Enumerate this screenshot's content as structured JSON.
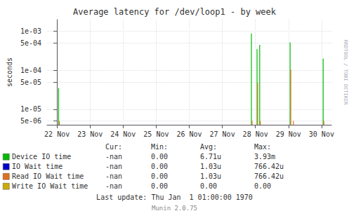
{
  "chart_data": {
    "type": "vlines",
    "title": "Average latency for /dev/loop1 - by week",
    "ylabel": "seconds",
    "log": "y",
    "grid": true,
    "legend": "bottom",
    "xlim": [
      -0.3,
      8.3
    ],
    "xticks": [
      {
        "value": 0,
        "label": "22 Nov"
      },
      {
        "value": 1,
        "label": "23 Nov"
      },
      {
        "value": 2,
        "label": "24 Nov"
      },
      {
        "value": 3,
        "label": "25 Nov"
      },
      {
        "value": 4,
        "label": "26 Nov"
      },
      {
        "value": 5,
        "label": "27 Nov"
      },
      {
        "value": 6,
        "label": "28 Nov"
      },
      {
        "value": 7,
        "label": "29 Nov"
      },
      {
        "value": 8,
        "label": "30 Nov"
      }
    ],
    "ylim": [
      4e-06,
      0.002
    ],
    "yticks": [
      {
        "value": 5e-06,
        "label": "5e-06"
      },
      {
        "value": 1e-05,
        "label": "1e-05"
      },
      {
        "value": 5e-05,
        "label": "5e-05"
      },
      {
        "value": 0.0001,
        "label": "1e-04"
      },
      {
        "value": 0.0005,
        "label": "5e-04"
      },
      {
        "value": 0.001,
        "label": "1e-03"
      }
    ],
    "stats_header": [
      "Cur:",
      "Min:",
      "Avg:",
      "Max:"
    ],
    "series": [
      {
        "name": "Device IO time",
        "color": "#00bb00",
        "x": [
          0.05,
          5.88,
          6.05,
          6.13,
          7.05,
          8.05
        ],
        "values": [
          3.5e-05,
          0.00088,
          0.00035,
          0.00045,
          0.00052,
          0.0002
        ],
        "stats": [
          "-nan",
          "0.00",
          "6.71u",
          "3.93m"
        ]
      },
      {
        "name": "IO Wait time",
        "color": "#0000cc",
        "x": [],
        "values": [],
        "stats": [
          "-nan",
          "0.00",
          "1.03u",
          "766.42u"
        ]
      },
      {
        "name": "Read IO Wait time",
        "color": "#e07020",
        "x": [
          0.07,
          5.9,
          6.07,
          6.15,
          7.07,
          7.15,
          8.07
        ],
        "values": [
          5e-06,
          5e-06,
          4.8e-05,
          5e-06,
          0.000105,
          5e-06,
          5e-06
        ],
        "stats": [
          "-nan",
          "0.00",
          "1.03u",
          "766.42u"
        ]
      },
      {
        "name": "Write IO Wait time",
        "color": "#ccaa00",
        "x": [],
        "values": [],
        "stats": [
          "-nan",
          "0.00",
          "0.00",
          "0.00"
        ]
      }
    ],
    "annotations": [
      "Last update: Thu Jan  1 01:00:00 1970",
      "Munin 2.0.75",
      "RRDTOOL / TOBI OETIKER"
    ]
  }
}
